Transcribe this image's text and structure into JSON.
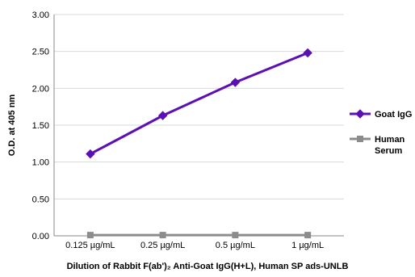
{
  "chart_data": {
    "type": "line",
    "categories": [
      "0.125 µg/mL",
      "0.25 µg/mL",
      "0.5 µg/mL",
      "1 µg/mL"
    ],
    "ylim": [
      0,
      3
    ],
    "yticks": [
      "0.00",
      "0.50",
      "1.00",
      "1.50",
      "2.00",
      "2.50",
      "3.00"
    ],
    "ylabel": "O.D. at 405 nm",
    "xlabel": "Dilution of Rabbit F(ab')₂ Anti-Goat IgG(H+L), Human SP ads-UNLB",
    "grid": "horizontal",
    "legend_position": "right",
    "series": [
      {
        "name": "Goat IgG",
        "values": [
          1.11,
          1.63,
          2.08,
          2.48
        ],
        "color": "#5b0fb4",
        "marker": "diamond"
      },
      {
        "name": "Human Serum",
        "values": [
          0.01,
          0.01,
          0.01,
          0.01
        ],
        "color": "#8c8c8c",
        "marker": "square"
      }
    ]
  }
}
